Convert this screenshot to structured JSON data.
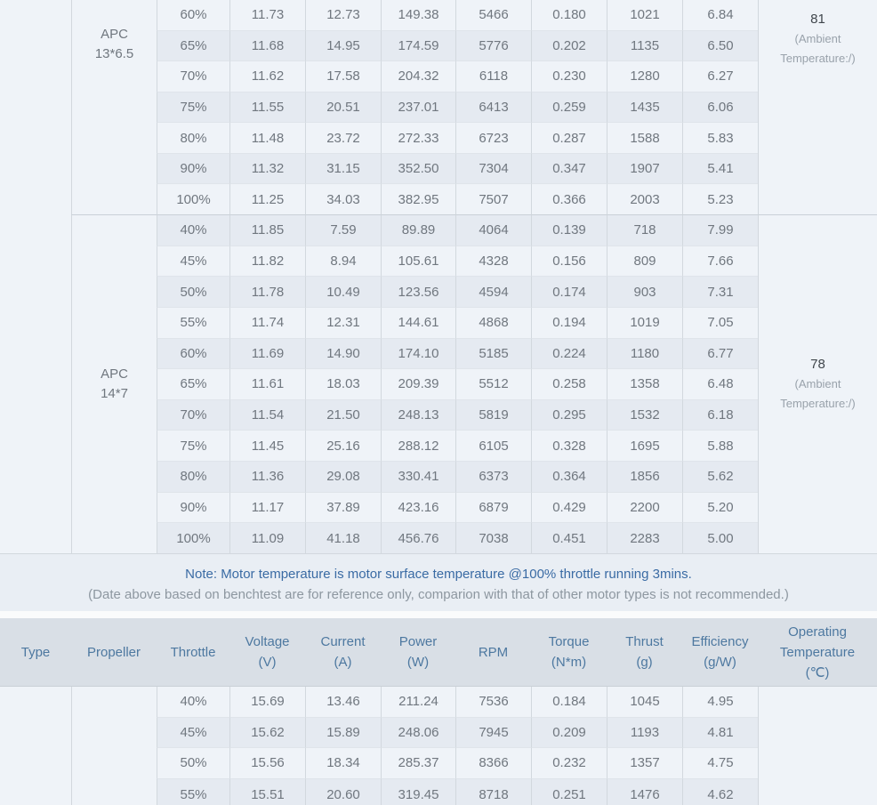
{
  "colors": {
    "row_light": "#eff3f8",
    "row_dark": "#e5eaf1",
    "header_bg": "#d9dfe6",
    "note_bg": "#e9eef4",
    "header_text": "#4d78a0",
    "data_text": "#70777f",
    "note_blue": "#3a6ba4",
    "note_gray": "#8d97a0"
  },
  "table_top": {
    "sections": [
      {
        "type_label": "",
        "propeller_lines": [
          "APC",
          "13*6.5"
        ],
        "temperature": {
          "value": "81",
          "ambient_lines": [
            "(Ambient",
            "Temperature:/)"
          ]
        },
        "zebra_start": "light",
        "content_align": "top",
        "rows": [
          [
            "60%",
            "11.73",
            "12.73",
            "149.38",
            "5466",
            "0.180",
            "1021",
            "6.84"
          ],
          [
            "65%",
            "11.68",
            "14.95",
            "174.59",
            "5776",
            "0.202",
            "1135",
            "6.50"
          ],
          [
            "70%",
            "11.62",
            "17.58",
            "204.32",
            "6118",
            "0.230",
            "1280",
            "6.27"
          ],
          [
            "75%",
            "11.55",
            "20.51",
            "237.01",
            "6413",
            "0.259",
            "1435",
            "6.06"
          ],
          [
            "80%",
            "11.48",
            "23.72",
            "272.33",
            "6723",
            "0.287",
            "1588",
            "5.83"
          ],
          [
            "90%",
            "11.32",
            "31.15",
            "352.50",
            "7304",
            "0.347",
            "1907",
            "5.41"
          ],
          [
            "100%",
            "11.25",
            "34.03",
            "382.95",
            "7507",
            "0.366",
            "2003",
            "5.23"
          ]
        ]
      },
      {
        "type_label": "",
        "propeller_lines": [
          "APC",
          "14*7"
        ],
        "temperature": {
          "value": "78",
          "ambient_lines": [
            "(Ambient",
            "Temperature:/)"
          ]
        },
        "zebra_start": "dark",
        "content_align": "center",
        "rows": [
          [
            "40%",
            "11.85",
            "7.59",
            "89.89",
            "4064",
            "0.139",
            "718",
            "7.99"
          ],
          [
            "45%",
            "11.82",
            "8.94",
            "105.61",
            "4328",
            "0.156",
            "809",
            "7.66"
          ],
          [
            "50%",
            "11.78",
            "10.49",
            "123.56",
            "4594",
            "0.174",
            "903",
            "7.31"
          ],
          [
            "55%",
            "11.74",
            "12.31",
            "144.61",
            "4868",
            "0.194",
            "1019",
            "7.05"
          ],
          [
            "60%",
            "11.69",
            "14.90",
            "174.10",
            "5185",
            "0.224",
            "1180",
            "6.77"
          ],
          [
            "65%",
            "11.61",
            "18.03",
            "209.39",
            "5512",
            "0.258",
            "1358",
            "6.48"
          ],
          [
            "70%",
            "11.54",
            "21.50",
            "248.13",
            "5819",
            "0.295",
            "1532",
            "6.18"
          ],
          [
            "75%",
            "11.45",
            "25.16",
            "288.12",
            "6105",
            "0.328",
            "1695",
            "5.88"
          ],
          [
            "80%",
            "11.36",
            "29.08",
            "330.41",
            "6373",
            "0.364",
            "1856",
            "5.62"
          ],
          [
            "90%",
            "11.17",
            "37.89",
            "423.16",
            "6879",
            "0.429",
            "2200",
            "5.20"
          ],
          [
            "100%",
            "11.09",
            "41.18",
            "456.76",
            "7038",
            "0.451",
            "2283",
            "5.00"
          ]
        ]
      }
    ]
  },
  "note": {
    "line1": "Note: Motor temperature is motor surface temperature @100% throttle running 3mins.",
    "line2": "(Date above based on benchtest are for reference only, comparion with that of other motor types is not recommended.)"
  },
  "table_bottom": {
    "headers": [
      {
        "lines": [
          "Type"
        ]
      },
      {
        "lines": [
          "Propeller"
        ]
      },
      {
        "lines": [
          "Throttle"
        ]
      },
      {
        "lines": [
          "Voltage",
          "(V)"
        ]
      },
      {
        "lines": [
          "Current",
          "(A)"
        ]
      },
      {
        "lines": [
          "Power",
          "(W)"
        ]
      },
      {
        "lines": [
          "RPM"
        ]
      },
      {
        "lines": [
          "Torque",
          "(N*m)"
        ]
      },
      {
        "lines": [
          "Thrust",
          "(g)"
        ]
      },
      {
        "lines": [
          "Efficiency",
          "(g/W)"
        ]
      },
      {
        "lines": [
          "Operating",
          "Temperature",
          "(℃)"
        ]
      }
    ],
    "sections": [
      {
        "type_label": "",
        "propeller_lines": [],
        "temperature": null,
        "zebra_start": "light",
        "content_align": "center",
        "rows": [
          [
            "40%",
            "15.69",
            "13.46",
            "211.24",
            "7536",
            "0.184",
            "1045",
            "4.95"
          ],
          [
            "45%",
            "15.62",
            "15.89",
            "248.06",
            "7945",
            "0.209",
            "1193",
            "4.81"
          ],
          [
            "50%",
            "15.56",
            "18.34",
            "285.37",
            "8366",
            "0.232",
            "1357",
            "4.75"
          ],
          [
            "55%",
            "15.51",
            "20.60",
            "319.45",
            "8718",
            "0.251",
            "1476",
            "4.62"
          ]
        ]
      }
    ]
  }
}
